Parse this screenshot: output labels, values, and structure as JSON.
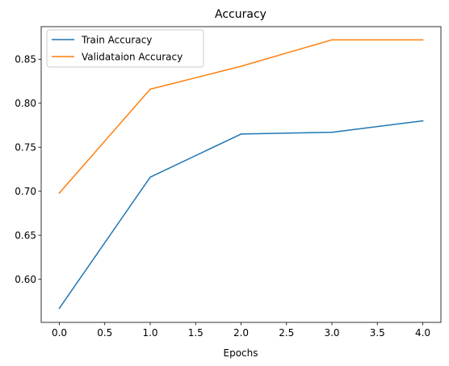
{
  "chart_data": {
    "type": "line",
    "title": "Accuracy",
    "xlabel": "Epochs",
    "ylabel": "",
    "x": [
      0,
      1,
      2,
      3,
      4
    ],
    "xlim": [
      -0.2,
      4.2
    ],
    "ylim": [
      0.551,
      0.887
    ],
    "xticks": [
      0.0,
      0.5,
      1.0,
      1.5,
      2.0,
      2.5,
      3.0,
      3.5,
      4.0
    ],
    "xtick_labels": [
      "0.0",
      "0.5",
      "1.0",
      "1.5",
      "2.0",
      "2.5",
      "3.0",
      "3.5",
      "4.0"
    ],
    "yticks": [
      0.6,
      0.65,
      0.7,
      0.75,
      0.8,
      0.85
    ],
    "ytick_labels": [
      "0.60",
      "0.65",
      "0.70",
      "0.75",
      "0.80",
      "0.85"
    ],
    "grid": false,
    "legend_position": "top-left",
    "series": [
      {
        "name": "Train Accuracy",
        "color": "#1f77b4",
        "values": [
          0.567,
          0.716,
          0.765,
          0.767,
          0.78
        ]
      },
      {
        "name": "Validataion Accuracy",
        "color": "#ff7f0e",
        "values": [
          0.698,
          0.816,
          0.842,
          0.872,
          0.872
        ]
      }
    ]
  }
}
